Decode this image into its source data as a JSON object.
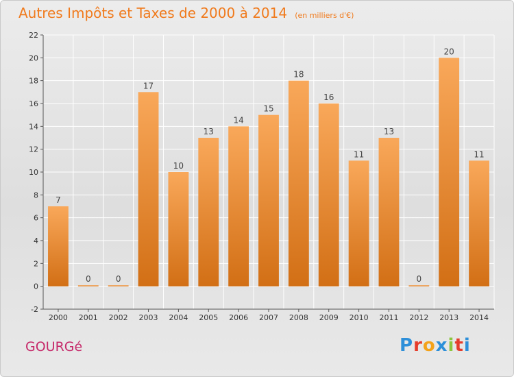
{
  "page": {
    "commune": "GOURGé",
    "logo_letters": [
      "P",
      "r",
      "o",
      "x",
      "i",
      "t",
      "i"
    ],
    "logo_colors": [
      "#2d8fd9",
      "#e53c2b",
      "#f4a21a",
      "#2d8fd9",
      "#8cc63e",
      "#e53c2b",
      "#2d8fd9"
    ]
  },
  "chart_data": {
    "type": "bar",
    "title": "Autres Impôts et Taxes de 2000 à 2014",
    "subtitle": "(en milliers d'€)",
    "xlabel": "",
    "ylabel": "",
    "categories": [
      "2000",
      "2001",
      "2002",
      "2003",
      "2004",
      "2005",
      "2006",
      "2007",
      "2008",
      "2009",
      "2010",
      "2011",
      "2012",
      "2013",
      "2014"
    ],
    "values": [
      7,
      0,
      0,
      17,
      10,
      13,
      14,
      15,
      18,
      16,
      11,
      13,
      0,
      20,
      11
    ],
    "ylim": [
      -2,
      22
    ],
    "yticks": [
      -2,
      0,
      2,
      4,
      6,
      8,
      10,
      12,
      14,
      16,
      18,
      20,
      22
    ],
    "grid": true,
    "colors": {
      "bar_top": "#f9a85a",
      "bar_bottom": "#d26f15",
      "grid": "#ffffff",
      "title": "#f07a1c"
    }
  }
}
